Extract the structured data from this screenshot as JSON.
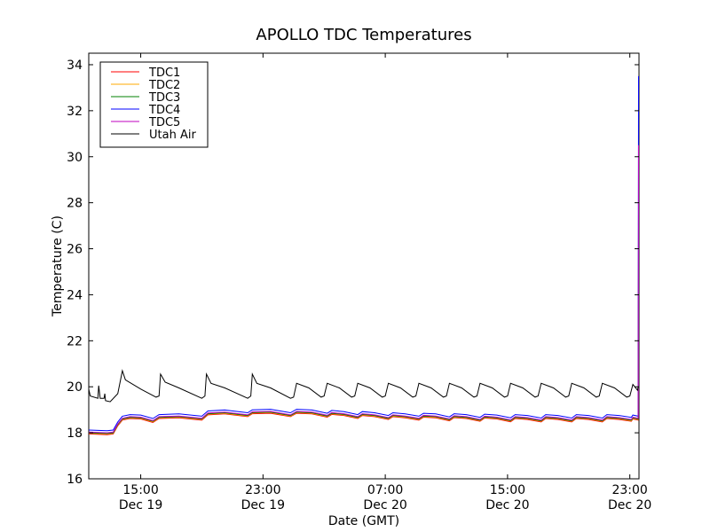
{
  "chart_data": {
    "type": "line",
    "title": "APOLLO TDC Temperatures",
    "xlabel": "Date (GMT)",
    "ylabel": "Temperature (C)",
    "ylim": [
      16,
      34.5
    ],
    "xlim_hours": [
      11.6,
      47.6
    ],
    "y_ticks": [
      16,
      18,
      20,
      22,
      24,
      26,
      28,
      30,
      32,
      34
    ],
    "x_ticks": [
      {
        "hour": 15,
        "time": "15:00",
        "date": "Dec 19"
      },
      {
        "hour": 23,
        "time": "23:00",
        "date": "Dec 19"
      },
      {
        "hour": 31,
        "time": "07:00",
        "date": "Dec 20"
      },
      {
        "hour": 39,
        "time": "15:00",
        "date": "Dec 20"
      },
      {
        "hour": 47,
        "time": "23:00",
        "date": "Dec 20"
      }
    ],
    "legend_position": "top-left",
    "series": [
      {
        "name": "TDC1",
        "color": "#ff0000",
        "offset": 0.0,
        "end_value": 25.0
      },
      {
        "name": "TDC2",
        "color": "#ffaa00",
        "offset": 0.03,
        "end_value": 26.0
      },
      {
        "name": "TDC3",
        "color": "#008000",
        "offset": 0.05,
        "end_value": 28.0
      },
      {
        "name": "TDC4",
        "color": "#0000ff",
        "offset": 0.17,
        "end_value": 33.5
      },
      {
        "name": "TDC5",
        "color": "#bf00bf",
        "offset": 0.08,
        "end_value": 30.5
      },
      {
        "name": "Utah Air",
        "color": "#000000",
        "offset": 0,
        "end_value": 20.0
      }
    ],
    "tdc_base_points": [
      [
        11.6,
        17.95
      ],
      [
        12.8,
        17.92
      ],
      [
        13.2,
        17.95
      ],
      [
        13.5,
        18.3
      ],
      [
        13.8,
        18.55
      ],
      [
        14.3,
        18.62
      ],
      [
        15.0,
        18.6
      ],
      [
        15.8,
        18.45
      ],
      [
        16.2,
        18.62
      ],
      [
        17.5,
        18.65
      ],
      [
        19.0,
        18.55
      ],
      [
        19.4,
        18.78
      ],
      [
        20.5,
        18.82
      ],
      [
        22.0,
        18.7
      ],
      [
        22.3,
        18.83
      ],
      [
        23.5,
        18.85
      ],
      [
        24.8,
        18.7
      ],
      [
        25.2,
        18.85
      ],
      [
        26.2,
        18.82
      ],
      [
        27.2,
        18.68
      ],
      [
        27.5,
        18.8
      ],
      [
        28.3,
        18.75
      ],
      [
        29.2,
        18.62
      ],
      [
        29.5,
        18.75
      ],
      [
        30.3,
        18.7
      ],
      [
        31.2,
        18.58
      ],
      [
        31.5,
        18.7
      ],
      [
        32.3,
        18.65
      ],
      [
        33.2,
        18.55
      ],
      [
        33.5,
        18.68
      ],
      [
        34.3,
        18.65
      ],
      [
        35.2,
        18.52
      ],
      [
        35.5,
        18.66
      ],
      [
        36.3,
        18.62
      ],
      [
        37.2,
        18.5
      ],
      [
        37.5,
        18.64
      ],
      [
        38.3,
        18.6
      ],
      [
        39.2,
        18.48
      ],
      [
        39.5,
        18.62
      ],
      [
        40.3,
        18.58
      ],
      [
        41.2,
        18.47
      ],
      [
        41.5,
        18.62
      ],
      [
        42.3,
        18.58
      ],
      [
        43.2,
        18.47
      ],
      [
        43.5,
        18.62
      ],
      [
        44.3,
        18.58
      ],
      [
        45.2,
        18.47
      ],
      [
        45.5,
        18.62
      ],
      [
        46.3,
        18.58
      ],
      [
        47.1,
        18.5
      ],
      [
        47.2,
        18.6
      ],
      [
        47.55,
        18.55
      ]
    ],
    "air_points": [
      [
        11.6,
        19.9
      ],
      [
        11.7,
        19.6
      ],
      [
        12.2,
        19.5
      ],
      [
        12.25,
        20.05
      ],
      [
        12.35,
        19.5
      ],
      [
        12.6,
        19.5
      ],
      [
        12.65,
        19.7
      ],
      [
        12.7,
        19.4
      ],
      [
        13.0,
        19.35
      ],
      [
        13.5,
        19.7
      ],
      [
        13.8,
        20.7
      ],
      [
        14.0,
        20.3
      ],
      [
        15.0,
        19.9
      ],
      [
        16.0,
        19.55
      ],
      [
        16.2,
        19.6
      ],
      [
        16.3,
        20.55
      ],
      [
        16.6,
        20.2
      ],
      [
        17.5,
        19.95
      ],
      [
        19.0,
        19.5
      ],
      [
        19.2,
        19.6
      ],
      [
        19.3,
        20.55
      ],
      [
        19.6,
        20.15
      ],
      [
        20.5,
        19.95
      ],
      [
        22.0,
        19.5
      ],
      [
        22.2,
        19.6
      ],
      [
        22.3,
        20.55
      ],
      [
        22.6,
        20.15
      ],
      [
        23.5,
        19.95
      ],
      [
        24.8,
        19.5
      ],
      [
        25.0,
        19.55
      ],
      [
        25.2,
        20.15
      ],
      [
        26.0,
        19.95
      ],
      [
        26.8,
        19.55
      ],
      [
        27.0,
        19.6
      ],
      [
        27.2,
        20.15
      ],
      [
        28.0,
        19.95
      ],
      [
        28.8,
        19.55
      ],
      [
        29.0,
        19.6
      ],
      [
        29.2,
        20.15
      ],
      [
        30.0,
        19.95
      ],
      [
        30.8,
        19.55
      ],
      [
        31.0,
        19.6
      ],
      [
        31.2,
        20.15
      ],
      [
        32.0,
        19.95
      ],
      [
        32.8,
        19.55
      ],
      [
        33.0,
        19.6
      ],
      [
        33.2,
        20.15
      ],
      [
        34.0,
        19.95
      ],
      [
        34.8,
        19.55
      ],
      [
        35.0,
        19.6
      ],
      [
        35.2,
        20.15
      ],
      [
        36.0,
        19.95
      ],
      [
        36.8,
        19.55
      ],
      [
        37.0,
        19.6
      ],
      [
        37.2,
        20.15
      ],
      [
        38.0,
        19.95
      ],
      [
        38.8,
        19.55
      ],
      [
        39.0,
        19.6
      ],
      [
        39.2,
        20.15
      ],
      [
        40.0,
        19.95
      ],
      [
        40.8,
        19.55
      ],
      [
        41.0,
        19.6
      ],
      [
        41.2,
        20.15
      ],
      [
        42.0,
        19.95
      ],
      [
        42.8,
        19.55
      ],
      [
        43.0,
        19.6
      ],
      [
        43.2,
        20.15
      ],
      [
        44.0,
        19.95
      ],
      [
        44.8,
        19.55
      ],
      [
        45.0,
        19.6
      ],
      [
        45.2,
        20.15
      ],
      [
        46.0,
        19.95
      ],
      [
        46.8,
        19.55
      ],
      [
        47.0,
        19.6
      ],
      [
        47.2,
        20.1
      ],
      [
        47.5,
        19.85
      ],
      [
        47.55,
        20.0
      ]
    ]
  }
}
